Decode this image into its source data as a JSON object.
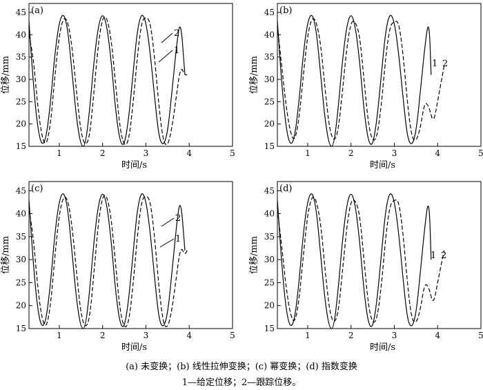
{
  "caption_line1": "(a) 未变换；(b) 线性拉伸变换；(c) 幂变换；(d) 指数变换",
  "caption_line2": "1—给定位移；2—跟踪位移。",
  "chart_data": [
    {
      "type": "line",
      "panel_label": "(a)",
      "xlabel": "时间/s",
      "ylabel": "位移/mm",
      "xlim": [
        0.3,
        5
      ],
      "ylim": [
        15,
        47
      ],
      "xticks": [
        1,
        2,
        3,
        4,
        5
      ],
      "yticks": [
        15,
        20,
        25,
        30,
        35,
        40,
        45
      ],
      "series": [
        {
          "name": "1",
          "style": "solid",
          "x": [
            0.3,
            0.4,
            0.5,
            0.6,
            0.7,
            0.8,
            0.9,
            1.0,
            1.1,
            1.2,
            1.3,
            1.4,
            1.5,
            1.6,
            1.7,
            1.8,
            1.9,
            2.0,
            2.1,
            2.2,
            2.3,
            2.4,
            2.5,
            2.6,
            2.7,
            2.8,
            2.9,
            3.0,
            3.1,
            3.2,
            3.3,
            3.4,
            3.5,
            3.6,
            3.7,
            3.8,
            3.9
          ],
          "y": [
            43,
            29,
            19,
            15,
            17,
            25,
            36,
            43,
            45,
            41,
            31,
            21,
            15,
            15,
            23,
            34,
            42,
            45,
            42,
            34,
            23,
            16,
            15,
            21,
            31,
            41,
            45,
            43,
            36,
            26,
            17,
            15,
            18,
            27,
            37,
            44,
            31
          ]
        },
        {
          "name": "2",
          "style": "dashed",
          "x": [
            0.3,
            0.4,
            0.5,
            0.6,
            0.7,
            0.8,
            0.9,
            1.0,
            1.1,
            1.2,
            1.3,
            1.4,
            1.5,
            1.6,
            1.7,
            1.8,
            1.9,
            2.0,
            2.1,
            2.2,
            2.3,
            2.4,
            2.5,
            2.6,
            2.7,
            2.8,
            2.9,
            3.0,
            3.1,
            3.2,
            3.3,
            3.4,
            3.5,
            3.6,
            3.7,
            3.8,
            3.9,
            3.95
          ],
          "y": [
            40,
            35,
            24,
            17,
            15,
            20,
            31,
            40,
            44,
            43,
            37,
            27,
            18,
            15,
            17,
            27,
            38,
            44,
            44,
            39,
            29,
            19,
            15,
            16,
            24,
            35,
            43,
            44,
            43,
            35,
            24,
            16,
            15,
            19,
            26,
            33,
            31,
            31
          ]
        }
      ],
      "line_labels": [
        "1",
        "2"
      ]
    },
    {
      "type": "line",
      "panel_label": "(b)",
      "xlabel": "时间/s",
      "ylabel": "位移/mm",
      "xlim": [
        0.3,
        5
      ],
      "ylim": [
        15,
        47
      ],
      "xticks": [
        1,
        2,
        3,
        4,
        5
      ],
      "yticks": [
        15,
        20,
        25,
        30,
        35,
        40,
        45
      ],
      "series": [
        {
          "name": "1",
          "style": "solid",
          "x": [
            0.3,
            0.4,
            0.5,
            0.6,
            0.7,
            0.8,
            0.9,
            1.0,
            1.1,
            1.2,
            1.3,
            1.4,
            1.5,
            1.6,
            1.7,
            1.8,
            1.9,
            2.0,
            2.1,
            2.2,
            2.3,
            2.4,
            2.5,
            2.6,
            2.7,
            2.8,
            2.9,
            3.0,
            3.1,
            3.2,
            3.3,
            3.4,
            3.5,
            3.6,
            3.7,
            3.8,
            3.85
          ],
          "y": [
            43,
            29,
            19,
            15,
            17,
            25,
            36,
            43,
            45,
            41,
            31,
            21,
            15,
            15,
            23,
            34,
            42,
            45,
            42,
            34,
            23,
            16,
            15,
            21,
            31,
            41,
            45,
            43,
            36,
            26,
            17,
            15,
            18,
            27,
            37,
            44,
            31
          ]
        },
        {
          "name": "2",
          "style": "dashed",
          "x": [
            0.3,
            0.4,
            0.5,
            0.6,
            0.7,
            0.8,
            0.9,
            1.0,
            1.1,
            1.2,
            1.3,
            1.4,
            1.5,
            1.6,
            1.7,
            1.8,
            1.9,
            2.0,
            2.1,
            2.2,
            2.3,
            2.4,
            2.5,
            2.6,
            2.7,
            2.8,
            2.9,
            3.0,
            3.1,
            3.2,
            3.3,
            3.4,
            3.5,
            3.6,
            3.7,
            3.8,
            3.9,
            4.0,
            4.15
          ],
          "y": [
            42,
            33,
            24,
            18,
            16,
            21,
            31,
            40,
            44,
            43,
            38,
            28,
            19,
            16,
            18,
            27,
            37,
            43,
            43,
            40,
            30,
            20,
            16,
            17,
            24,
            35,
            42,
            43,
            43,
            36,
            25,
            17,
            16,
            19,
            25,
            24,
            20,
            25,
            33
          ]
        }
      ],
      "line_labels": [
        "1",
        "2"
      ]
    },
    {
      "type": "line",
      "panel_label": "(c)",
      "xlabel": "时间/s",
      "ylabel": "位移/mm",
      "xlim": [
        0.3,
        5
      ],
      "ylim": [
        15,
        47
      ],
      "xticks": [
        1,
        2,
        3,
        4,
        5
      ],
      "yticks": [
        15,
        20,
        25,
        30,
        35,
        40,
        45
      ],
      "series": [
        {
          "name": "1",
          "style": "solid",
          "x": [
            0.3,
            0.4,
            0.5,
            0.6,
            0.7,
            0.8,
            0.9,
            1.0,
            1.1,
            1.2,
            1.3,
            1.4,
            1.5,
            1.6,
            1.7,
            1.8,
            1.9,
            2.0,
            2.1,
            2.2,
            2.3,
            2.4,
            2.5,
            2.6,
            2.7,
            2.8,
            2.9,
            3.0,
            3.1,
            3.2,
            3.3,
            3.4,
            3.5,
            3.6,
            3.7,
            3.8,
            3.9
          ],
          "y": [
            43,
            29,
            19,
            15,
            17,
            25,
            36,
            43,
            45,
            41,
            31,
            21,
            15,
            15,
            23,
            34,
            42,
            45,
            42,
            34,
            23,
            16,
            15,
            21,
            31,
            41,
            45,
            43,
            36,
            26,
            17,
            15,
            18,
            27,
            37,
            44,
            32
          ]
        },
        {
          "name": "2",
          "style": "dashed",
          "x": [
            0.3,
            0.4,
            0.5,
            0.6,
            0.7,
            0.8,
            0.9,
            1.0,
            1.1,
            1.2,
            1.3,
            1.4,
            1.5,
            1.6,
            1.7,
            1.8,
            1.9,
            2.0,
            2.1,
            2.2,
            2.3,
            2.4,
            2.5,
            2.6,
            2.7,
            2.8,
            2.9,
            3.0,
            3.1,
            3.2,
            3.3,
            3.4,
            3.5,
            3.6,
            3.7,
            3.8,
            3.9,
            3.95
          ],
          "y": [
            41,
            35,
            24,
            17,
            15,
            20,
            31,
            40,
            44,
            43,
            37,
            27,
            18,
            15,
            17,
            27,
            38,
            44,
            44,
            39,
            29,
            19,
            15,
            16,
            24,
            35,
            43,
            44,
            43,
            35,
            24,
            16,
            15,
            19,
            26,
            33,
            31,
            32
          ]
        }
      ],
      "line_labels": [
        "1",
        "2"
      ]
    },
    {
      "type": "line",
      "panel_label": "(d)",
      "xlabel": "时间/s",
      "ylabel": "位移/mm",
      "xlim": [
        0.3,
        5
      ],
      "ylim": [
        15,
        47
      ],
      "xticks": [
        1,
        2,
        3,
        4,
        5
      ],
      "yticks": [
        15,
        20,
        25,
        30,
        35,
        40,
        45
      ],
      "series": [
        {
          "name": "1",
          "style": "solid",
          "x": [
            0.3,
            0.4,
            0.5,
            0.6,
            0.7,
            0.8,
            0.9,
            1.0,
            1.1,
            1.2,
            1.3,
            1.4,
            1.5,
            1.6,
            1.7,
            1.8,
            1.9,
            2.0,
            2.1,
            2.2,
            2.3,
            2.4,
            2.5,
            2.6,
            2.7,
            2.8,
            2.9,
            3.0,
            3.1,
            3.2,
            3.3,
            3.4,
            3.5,
            3.6,
            3.7,
            3.8,
            3.85
          ],
          "y": [
            43,
            29,
            19,
            15,
            17,
            25,
            36,
            43,
            45,
            41,
            31,
            21,
            15,
            15,
            23,
            34,
            42,
            45,
            42,
            34,
            23,
            16,
            15,
            21,
            31,
            41,
            45,
            43,
            36,
            26,
            17,
            15,
            18,
            27,
            37,
            44,
            30
          ]
        },
        {
          "name": "2",
          "style": "dashed",
          "x": [
            0.3,
            0.4,
            0.5,
            0.6,
            0.7,
            0.8,
            0.9,
            1.0,
            1.1,
            1.2,
            1.3,
            1.4,
            1.5,
            1.6,
            1.7,
            1.8,
            1.9,
            2.0,
            2.1,
            2.2,
            2.3,
            2.4,
            2.5,
            2.6,
            2.7,
            2.8,
            2.9,
            3.0,
            3.1,
            3.2,
            3.3,
            3.4,
            3.5,
            3.6,
            3.7,
            3.8,
            3.9,
            4.0,
            4.15
          ],
          "y": [
            41,
            33,
            24,
            18,
            16,
            21,
            31,
            40,
            44,
            43,
            38,
            28,
            19,
            16,
            18,
            27,
            37,
            43,
            43,
            40,
            30,
            20,
            16,
            17,
            24,
            35,
            42,
            43,
            43,
            36,
            25,
            17,
            16,
            19,
            25,
            24,
            20,
            25,
            32
          ]
        }
      ],
      "line_labels": [
        "1",
        "2"
      ]
    }
  ]
}
